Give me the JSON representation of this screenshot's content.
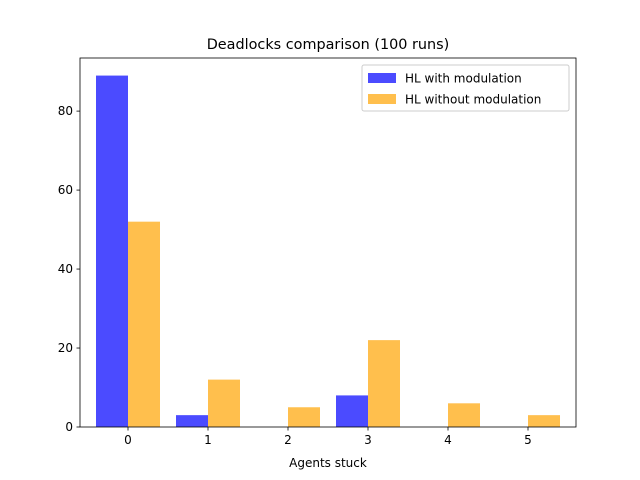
{
  "chart_data": {
    "type": "bar",
    "title": "Deadlocks comparison (100 runs)",
    "xlabel": "Agents stuck",
    "ylabel": "",
    "categories": [
      "0",
      "1",
      "2",
      "3",
      "4",
      "5"
    ],
    "series": [
      {
        "name": "HL with modulation",
        "values": [
          89,
          3,
          0,
          8,
          0,
          0
        ],
        "color": "#4b4bff"
      },
      {
        "name": "HL without modulation",
        "values": [
          52,
          12,
          5,
          22,
          6,
          3
        ],
        "color": "#ffbf4d"
      }
    ],
    "yticks": [
      0,
      20,
      40,
      60,
      80
    ],
    "ylim": [
      0,
      93.45
    ],
    "xlim": [
      -0.6,
      5.6
    ],
    "legend": "top-right",
    "grid": false
  }
}
